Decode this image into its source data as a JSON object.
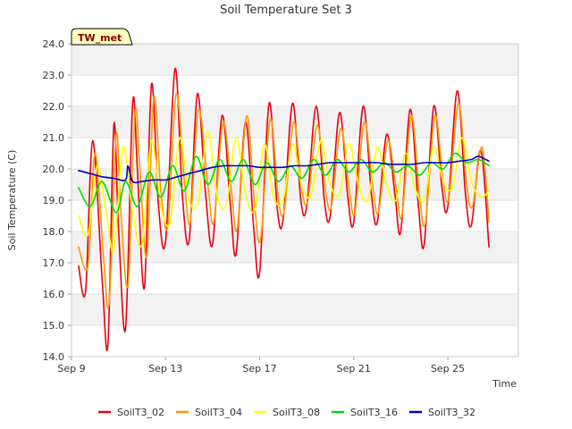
{
  "chart_data": {
    "type": "line",
    "title": "Soil Temperature Set 3",
    "xlabel": "Time",
    "ylabel": "Soil Temperature (C)",
    "badge": "TW_met",
    "x_ticks": [
      "Sep 9",
      "Sep 13",
      "Sep 17",
      "Sep 21",
      "Sep 25"
    ],
    "x_tick_days": [
      9,
      13,
      17,
      21,
      25
    ],
    "xlim": [
      9,
      28
    ],
    "ylim": [
      14.0,
      24.0
    ],
    "y_ticks": [
      14.0,
      15.0,
      16.0,
      17.0,
      18.0,
      19.0,
      20.0,
      21.0,
      22.0,
      23.0,
      24.0
    ],
    "grid": "horizontal bands",
    "legend_position": "bottom",
    "series": [
      {
        "name": "SoilT3_02",
        "color": "#e8000f",
        "x": [
          9.3,
          9.6,
          9.9,
          10.3,
          10.55,
          10.8,
          11.0,
          11.3,
          11.6,
          11.8,
          12.1,
          12.4,
          12.7,
          13.0,
          13.4,
          13.7,
          14.0,
          14.35,
          14.7,
          15.0,
          15.4,
          15.75,
          16.0,
          16.4,
          16.75,
          17.0,
          17.4,
          17.75,
          18.0,
          18.4,
          18.75,
          19.0,
          19.4,
          19.75,
          20.0,
          20.4,
          20.75,
          21.0,
          21.4,
          21.75,
          22.0,
          22.4,
          22.75,
          23.0,
          23.4,
          23.75,
          24.0,
          24.4,
          24.75,
          25.0,
          25.4,
          25.75,
          26.0,
          26.4,
          26.75
        ],
        "y": [
          16.9,
          16.1,
          20.9,
          16.5,
          14.4,
          21.4,
          18.1,
          14.9,
          22.1,
          20.0,
          16.2,
          22.7,
          18.8,
          17.7,
          23.2,
          19.3,
          17.7,
          22.4,
          19.2,
          17.6,
          21.7,
          18.9,
          17.3,
          21.5,
          18.1,
          16.7,
          22.1,
          18.7,
          18.4,
          22.1,
          19.0,
          18.8,
          22.0,
          19.0,
          18.5,
          21.8,
          19.1,
          18.3,
          22.0,
          19.2,
          18.3,
          21.1,
          19.2,
          18.0,
          21.9,
          18.8,
          17.6,
          22.0,
          19.4,
          18.8,
          22.5,
          19.2,
          18.2,
          20.6,
          17.5
        ]
      },
      {
        "name": "SoilT3_04",
        "color": "#ff9900",
        "x": [
          9.3,
          9.7,
          10.0,
          10.35,
          10.6,
          10.9,
          11.1,
          11.4,
          11.7,
          11.9,
          12.2,
          12.5,
          12.8,
          13.1,
          13.45,
          13.8,
          14.05,
          14.4,
          14.8,
          15.05,
          15.45,
          15.8,
          16.05,
          16.45,
          16.8,
          17.05,
          17.45,
          17.8,
          18.05,
          18.45,
          18.8,
          19.05,
          19.45,
          19.8,
          20.05,
          20.45,
          20.8,
          21.05,
          21.45,
          21.8,
          22.05,
          22.45,
          22.8,
          23.05,
          23.45,
          23.8,
          24.05,
          24.45,
          24.8,
          25.05,
          25.45,
          25.8,
          26.05,
          26.45,
          26.75
        ],
        "y": [
          17.5,
          16.9,
          20.5,
          17.3,
          15.7,
          21.1,
          18.6,
          16.3,
          21.8,
          20.1,
          17.2,
          22.3,
          19.3,
          18.2,
          22.4,
          19.6,
          18.3,
          21.9,
          19.5,
          18.3,
          21.5,
          19.3,
          18.1,
          21.7,
          18.7,
          17.8,
          21.6,
          19.0,
          18.7,
          21.5,
          19.3,
          19.0,
          21.4,
          19.3,
          18.8,
          21.3,
          19.4,
          18.6,
          21.5,
          19.5,
          18.6,
          20.9,
          19.4,
          18.5,
          21.7,
          19.1,
          18.3,
          21.7,
          19.6,
          19.1,
          22.1,
          19.5,
          18.8,
          20.7,
          18.3
        ]
      },
      {
        "name": "SoilT3_08",
        "color": "#ffff00",
        "x": [
          9.3,
          9.7,
          10.1,
          10.5,
          10.8,
          11.2,
          11.6,
          12.0,
          12.4,
          12.8,
          13.2,
          13.6,
          14.0,
          14.4,
          14.8,
          15.2,
          15.6,
          16.0,
          16.4,
          16.8,
          17.2,
          17.6,
          18.0,
          18.4,
          18.8,
          19.2,
          19.6,
          20.0,
          20.4,
          20.8,
          21.2,
          21.6,
          22.0,
          22.4,
          22.8,
          23.2,
          23.6,
          24.0,
          24.4,
          24.8,
          25.2,
          25.6,
          26.0,
          26.4,
          26.75
        ],
        "y": [
          18.5,
          17.9,
          20.1,
          18.5,
          17.4,
          20.7,
          18.6,
          17.6,
          20.9,
          18.8,
          18.3,
          21.0,
          19.0,
          19.0,
          21.2,
          19.1,
          18.9,
          21.0,
          19.2,
          18.7,
          20.8,
          19.1,
          19.0,
          20.8,
          19.4,
          19.2,
          20.9,
          19.5,
          19.2,
          20.8,
          19.5,
          19.0,
          20.7,
          19.5,
          19.0,
          20.5,
          19.4,
          19.0,
          20.7,
          19.6,
          19.4,
          21.0,
          19.6,
          19.1,
          19.3
        ]
      },
      {
        "name": "SoilT3_16",
        "color": "#00dd00",
        "x": [
          9.3,
          9.8,
          10.3,
          10.9,
          11.3,
          11.8,
          12.3,
          12.8,
          13.3,
          13.8,
          14.3,
          14.8,
          15.3,
          15.8,
          16.3,
          16.8,
          17.3,
          17.8,
          18.3,
          18.8,
          19.3,
          19.8,
          20.3,
          20.8,
          21.3,
          21.8,
          22.3,
          22.8,
          23.3,
          23.8,
          24.3,
          24.8,
          25.3,
          25.8,
          26.3,
          26.75
        ],
        "y": [
          19.4,
          18.8,
          19.6,
          18.6,
          19.6,
          18.8,
          19.9,
          19.1,
          20.1,
          19.3,
          20.4,
          19.5,
          20.3,
          19.6,
          20.3,
          19.5,
          20.2,
          19.6,
          20.1,
          19.7,
          20.3,
          19.8,
          20.3,
          19.9,
          20.3,
          19.9,
          20.2,
          19.9,
          20.1,
          19.8,
          20.2,
          20.0,
          20.5,
          20.2,
          20.3,
          20.1
        ]
      },
      {
        "name": "SoilT3_32",
        "color": "#0000cc",
        "x": [
          9.3,
          9.8,
          10.3,
          10.8,
          11.3,
          11.4,
          11.6,
          12.0,
          12.5,
          13.0,
          13.5,
          14.0,
          14.5,
          15.0,
          15.5,
          16.0,
          16.5,
          17.0,
          17.5,
          18.0,
          18.5,
          19.0,
          19.5,
          20.0,
          20.5,
          21.0,
          21.5,
          22.0,
          22.5,
          23.0,
          23.5,
          24.0,
          24.5,
          25.0,
          25.5,
          26.0,
          26.3,
          26.75
        ],
        "y": [
          19.95,
          19.85,
          19.75,
          19.7,
          19.65,
          20.1,
          19.6,
          19.6,
          19.65,
          19.65,
          19.75,
          19.85,
          19.95,
          20.05,
          20.1,
          20.1,
          20.1,
          20.05,
          20.05,
          20.05,
          20.1,
          20.1,
          20.15,
          20.2,
          20.2,
          20.2,
          20.2,
          20.2,
          20.15,
          20.15,
          20.15,
          20.2,
          20.2,
          20.2,
          20.25,
          20.3,
          20.4,
          20.25
        ]
      }
    ]
  }
}
